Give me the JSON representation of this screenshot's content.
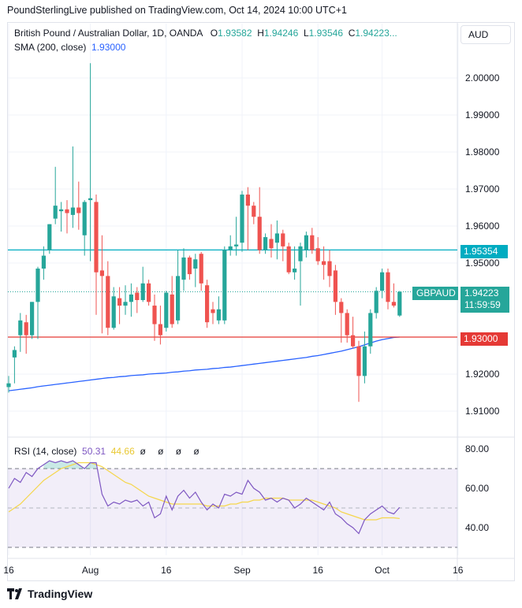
{
  "header": {
    "text": "PoundSterlingLive published on TradingView.com, Oct 14, 2024 10:00 UTC+1"
  },
  "legend": {
    "symbol": "British Pound / Australian Dollar, 1D, OANDA",
    "o_label": "O",
    "o_value": "1.93582",
    "h_label": "H",
    "h_value": "1.94246",
    "l_label": "L",
    "l_value": "1.93546",
    "c_label": "C",
    "c_value": "1.94223...",
    "sma_label": "SMA (200, close)",
    "sma_value": "1.93000",
    "rsi_label": "RSI (14, close)",
    "rsi_value": "50.31",
    "rsi_ma_value": "44.66",
    "rsi_icons": "ø ø ø ø"
  },
  "currency": "AUD",
  "price_tags": {
    "level_label": "1.95354",
    "current_symbol": "GBPAUD",
    "current_price": "1.94223",
    "countdown": "11:59:59",
    "sma_label": "1.93000"
  },
  "brand": {
    "name": "TradingView"
  },
  "colors": {
    "up": "#26a69a",
    "down": "#ef5350",
    "sma": "#2962ff",
    "rsi": "#7e57c2",
    "rsi_ma": "#f5d64b",
    "level": "#00acc1",
    "sma_tag": "#e53935"
  },
  "chart_data": [
    {
      "type": "candlestick",
      "title": "British Pound / Australian Dollar, 1D, OANDA",
      "y_ticks": [
        "2.00000",
        "1.99000",
        "1.98000",
        "1.97000",
        "1.96000",
        "1.95000",
        "1.92000",
        "1.91000"
      ],
      "ylim": [
        1.905,
        2.01
      ],
      "x_ticks": [
        "16",
        "Aug",
        "16",
        "Sep",
        "16",
        "Oct",
        "16"
      ],
      "x_tick_index": [
        0,
        14,
        27,
        40,
        53,
        64,
        77
      ],
      "horizontal_levels": [
        1.95354,
        1.93
      ],
      "candles": [
        {
          "o": 1.9165,
          "h": 1.9195,
          "l": 1.915,
          "c": 1.9175
        },
        {
          "o": 1.9245,
          "h": 1.9275,
          "l": 1.9175,
          "c": 1.9265
        },
        {
          "o": 1.9305,
          "h": 1.9365,
          "l": 1.926,
          "c": 1.9345
        },
        {
          "o": 1.934,
          "h": 1.936,
          "l": 1.9255,
          "c": 1.9305
        },
        {
          "o": 1.9305,
          "h": 1.9395,
          "l": 1.9295,
          "c": 1.9395
        },
        {
          "o": 1.9395,
          "h": 1.949,
          "l": 1.9295,
          "c": 1.9485
        },
        {
          "o": 1.9485,
          "h": 1.9545,
          "l": 1.9455,
          "c": 1.952
        },
        {
          "o": 1.9535,
          "h": 1.9605,
          "l": 1.9525,
          "c": 1.9605
        },
        {
          "o": 1.962,
          "h": 1.976,
          "l": 1.9605,
          "c": 1.9655
        },
        {
          "o": 1.964,
          "h": 1.9665,
          "l": 1.9585,
          "c": 1.9645
        },
        {
          "o": 1.9645,
          "h": 1.967,
          "l": 1.958,
          "c": 1.9635
        },
        {
          "o": 1.963,
          "h": 1.9815,
          "l": 1.9595,
          "c": 1.965
        },
        {
          "o": 1.965,
          "h": 1.972,
          "l": 1.959,
          "c": 1.9635
        },
        {
          "o": 1.9575,
          "h": 1.967,
          "l": 1.952,
          "c": 1.9665
        },
        {
          "o": 1.967,
          "h": 2.004,
          "l": 1.9505,
          "c": 1.9675
        },
        {
          "o": 1.9665,
          "h": 1.9685,
          "l": 1.936,
          "c": 1.9475
        },
        {
          "o": 1.948,
          "h": 1.9575,
          "l": 1.931,
          "c": 1.9465
        },
        {
          "o": 1.9465,
          "h": 1.9505,
          "l": 1.9305,
          "c": 1.9325
        },
        {
          "o": 1.9325,
          "h": 1.9435,
          "l": 1.932,
          "c": 1.941
        },
        {
          "o": 1.9405,
          "h": 1.9435,
          "l": 1.9335,
          "c": 1.9385
        },
        {
          "o": 1.9385,
          "h": 1.944,
          "l": 1.936,
          "c": 1.9395
        },
        {
          "o": 1.9395,
          "h": 1.9445,
          "l": 1.9355,
          "c": 1.9415
        },
        {
          "o": 1.942,
          "h": 1.9435,
          "l": 1.9365,
          "c": 1.94
        },
        {
          "o": 1.94,
          "h": 1.949,
          "l": 1.9395,
          "c": 1.9445
        },
        {
          "o": 1.9445,
          "h": 1.9455,
          "l": 1.9385,
          "c": 1.9395
        },
        {
          "o": 1.9385,
          "h": 1.9415,
          "l": 1.929,
          "c": 1.9335
        },
        {
          "o": 1.9335,
          "h": 1.9385,
          "l": 1.928,
          "c": 1.9305
        },
        {
          "o": 1.9325,
          "h": 1.9425,
          "l": 1.9315,
          "c": 1.942
        },
        {
          "o": 1.9415,
          "h": 1.9465,
          "l": 1.9325,
          "c": 1.9335
        },
        {
          "o": 1.9345,
          "h": 1.9535,
          "l": 1.9335,
          "c": 1.9465
        },
        {
          "o": 1.9455,
          "h": 1.954,
          "l": 1.9425,
          "c": 1.9515
        },
        {
          "o": 1.9515,
          "h": 1.952,
          "l": 1.9455,
          "c": 1.947
        },
        {
          "o": 1.9485,
          "h": 1.9525,
          "l": 1.9435,
          "c": 1.951
        },
        {
          "o": 1.9525,
          "h": 1.953,
          "l": 1.9425,
          "c": 1.9445
        },
        {
          "o": 1.944,
          "h": 1.9455,
          "l": 1.9325,
          "c": 1.934
        },
        {
          "o": 1.9375,
          "h": 1.9395,
          "l": 1.9335,
          "c": 1.9365
        },
        {
          "o": 1.9345,
          "h": 1.941,
          "l": 1.9335,
          "c": 1.9375
        },
        {
          "o": 1.9345,
          "h": 1.9545,
          "l": 1.9335,
          "c": 1.9535
        },
        {
          "o": 1.9535,
          "h": 1.9575,
          "l": 1.952,
          "c": 1.9545
        },
        {
          "o": 1.9545,
          "h": 1.9625,
          "l": 1.952,
          "c": 1.955
        },
        {
          "o": 1.9555,
          "h": 1.9695,
          "l": 1.953,
          "c": 1.9685
        },
        {
          "o": 1.9685,
          "h": 1.9705,
          "l": 1.9535,
          "c": 1.9655
        },
        {
          "o": 1.9655,
          "h": 1.9665,
          "l": 1.9605,
          "c": 1.9625
        },
        {
          "o": 1.9625,
          "h": 1.9705,
          "l": 1.9525,
          "c": 1.9535
        },
        {
          "o": 1.9535,
          "h": 1.958,
          "l": 1.9525,
          "c": 1.957
        },
        {
          "o": 1.9565,
          "h": 1.9605,
          "l": 1.9515,
          "c": 1.954
        },
        {
          "o": 1.9555,
          "h": 1.9615,
          "l": 1.951,
          "c": 1.958
        },
        {
          "o": 1.958,
          "h": 1.959,
          "l": 1.9505,
          "c": 1.9545
        },
        {
          "o": 1.9545,
          "h": 1.9555,
          "l": 1.947,
          "c": 1.9475
        },
        {
          "o": 1.9475,
          "h": 1.9545,
          "l": 1.9455,
          "c": 1.9485
        },
        {
          "o": 1.9505,
          "h": 1.9555,
          "l": 1.9385,
          "c": 1.9545
        },
        {
          "o": 1.9535,
          "h": 1.9585,
          "l": 1.9515,
          "c": 1.9575
        },
        {
          "o": 1.9575,
          "h": 1.9595,
          "l": 1.9525,
          "c": 1.9535
        },
        {
          "o": 1.954,
          "h": 1.957,
          "l": 1.9495,
          "c": 1.9505
        },
        {
          "o": 1.9505,
          "h": 1.9545,
          "l": 1.9455,
          "c": 1.9495
        },
        {
          "o": 1.9505,
          "h": 1.9535,
          "l": 1.9435,
          "c": 1.9465
        },
        {
          "o": 1.948,
          "h": 1.9495,
          "l": 1.936,
          "c": 1.9395
        },
        {
          "o": 1.9395,
          "h": 1.9405,
          "l": 1.9285,
          "c": 1.9365
        },
        {
          "o": 1.9365,
          "h": 1.9375,
          "l": 1.9285,
          "c": 1.9305
        },
        {
          "o": 1.9305,
          "h": 1.9355,
          "l": 1.927,
          "c": 1.9275
        },
        {
          "o": 1.9275,
          "h": 1.929,
          "l": 1.9125,
          "c": 1.9195
        },
        {
          "o": 1.9195,
          "h": 1.9315,
          "l": 1.9175,
          "c": 1.9275
        },
        {
          "o": 1.9275,
          "h": 1.9375,
          "l": 1.9255,
          "c": 1.9365
        },
        {
          "o": 1.9365,
          "h": 1.9435,
          "l": 1.935,
          "c": 1.9425
        },
        {
          "o": 1.9425,
          "h": 1.9485,
          "l": 1.9405,
          "c": 1.9475
        },
        {
          "o": 1.9475,
          "h": 1.9485,
          "l": 1.9375,
          "c": 1.9395
        },
        {
          "o": 1.9395,
          "h": 1.9445,
          "l": 1.938,
          "c": 1.9385
        },
        {
          "o": 1.93582,
          "h": 1.94246,
          "l": 1.93546,
          "c": 1.94223
        }
      ],
      "sma": [
        1.9155,
        1.9157,
        1.9159,
        1.9161,
        1.9163,
        1.9166,
        1.9168,
        1.917,
        1.9172,
        1.9174,
        1.9176,
        1.9178,
        1.918,
        1.9182,
        1.9184,
        1.9186,
        1.9188,
        1.919,
        1.9191,
        1.9193,
        1.9194,
        1.9196,
        1.9197,
        1.9198,
        1.92,
        1.9201,
        1.9202,
        1.9203,
        1.9205,
        1.9206,
        1.9208,
        1.9209,
        1.9211,
        1.9212,
        1.9213,
        1.9215,
        1.9216,
        1.9218,
        1.9219,
        1.9221,
        1.9223,
        1.9225,
        1.9227,
        1.9229,
        1.9231,
        1.9233,
        1.9235,
        1.9237,
        1.9239,
        1.9241,
        1.9243,
        1.9245,
        1.9248,
        1.925,
        1.9253,
        1.9256,
        1.9259,
        1.9262,
        1.9266,
        1.927,
        1.9274,
        1.9279,
        1.9284,
        1.9289,
        1.9293,
        1.9296,
        1.9299,
        1.93
      ]
    },
    {
      "type": "line",
      "title": "RSI (14, close)",
      "y_ticks": [
        "80.00",
        "60.00",
        "40.00"
      ],
      "ylim": [
        25,
        85
      ],
      "band": [
        30,
        70
      ],
      "series": [
        {
          "name": "RSI",
          "values": [
            60,
            65,
            63,
            68,
            66,
            70,
            72,
            74,
            73,
            74,
            73,
            74,
            72,
            70,
            73,
            73,
            57,
            51,
            53,
            52,
            54,
            53,
            54,
            51,
            53,
            45,
            47,
            56,
            49,
            56,
            59,
            55,
            58,
            53,
            49,
            52,
            50,
            57,
            56,
            58,
            57,
            64,
            60,
            58,
            54,
            55,
            53,
            55,
            54,
            50,
            52,
            55,
            53,
            51,
            49,
            53,
            47,
            45,
            42,
            40,
            37,
            44,
            47,
            49,
            51,
            48,
            47,
            50.31
          ]
        },
        {
          "name": "RSI-based MA",
          "values": [
            48,
            50,
            52,
            55,
            58,
            61,
            64,
            66,
            68,
            70,
            71,
            72,
            73,
            73,
            73,
            72,
            71,
            69,
            67,
            65,
            63,
            62,
            60,
            58,
            56,
            55,
            54,
            53,
            52,
            52,
            52,
            52,
            52,
            52,
            51,
            51,
            51,
            51,
            52,
            52,
            53,
            53,
            54,
            54,
            55,
            55,
            55,
            55,
            54,
            54,
            54,
            54,
            54,
            53,
            52,
            51,
            50,
            48,
            47,
            46,
            45,
            44,
            44,
            44,
            45,
            45,
            45,
            44.66
          ]
        }
      ]
    }
  ]
}
